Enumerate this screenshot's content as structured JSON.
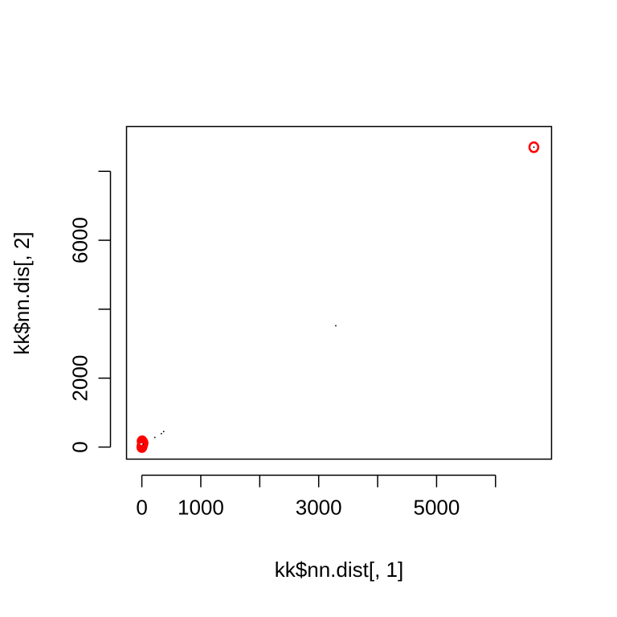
{
  "chart_data": {
    "type": "scatter",
    "xlabel": "kk$nn.dist[, 1]",
    "ylabel": "kk$nn.dis[, 2]",
    "xlim": [
      -260,
      6950
    ],
    "ylim": [
      -350,
      9300
    ],
    "x_ticks": [
      0,
      1000,
      2000,
      3000,
      4000,
      5000,
      6000
    ],
    "x_tick_labels": [
      "0",
      "1000",
      "",
      "3000",
      "",
      "5000",
      ""
    ],
    "y_ticks": [
      0,
      2000,
      4000,
      6000,
      8000
    ],
    "y_tick_labels": [
      "0",
      "2000",
      "",
      "6000",
      ""
    ],
    "grid": false,
    "series": [
      {
        "color": "#000000",
        "marker": "dot",
        "points": [
          {
            "x": 5,
            "y": 20
          },
          {
            "x": 10,
            "y": 40
          },
          {
            "x": 15,
            "y": 60
          },
          {
            "x": 20,
            "y": 50
          },
          {
            "x": 25,
            "y": 80
          },
          {
            "x": 30,
            "y": 110
          },
          {
            "x": 8,
            "y": 130
          },
          {
            "x": 12,
            "y": 150
          },
          {
            "x": 220,
            "y": 280
          },
          {
            "x": 330,
            "y": 390
          },
          {
            "x": 370,
            "y": 450
          },
          {
            "x": 3290,
            "y": 3520
          },
          {
            "x": 6650,
            "y": 8700
          }
        ]
      },
      {
        "color": "#ff0000",
        "marker": "open-circle",
        "points": [
          {
            "x": 0,
            "y": 0
          },
          {
            "x": 5,
            "y": 30
          },
          {
            "x": 10,
            "y": 60
          },
          {
            "x": 15,
            "y": 90
          },
          {
            "x": 10,
            "y": 140
          },
          {
            "x": 5,
            "y": 170
          },
          {
            "x": 20,
            "y": 120
          },
          {
            "x": 6650,
            "y": 8700
          }
        ]
      }
    ]
  }
}
